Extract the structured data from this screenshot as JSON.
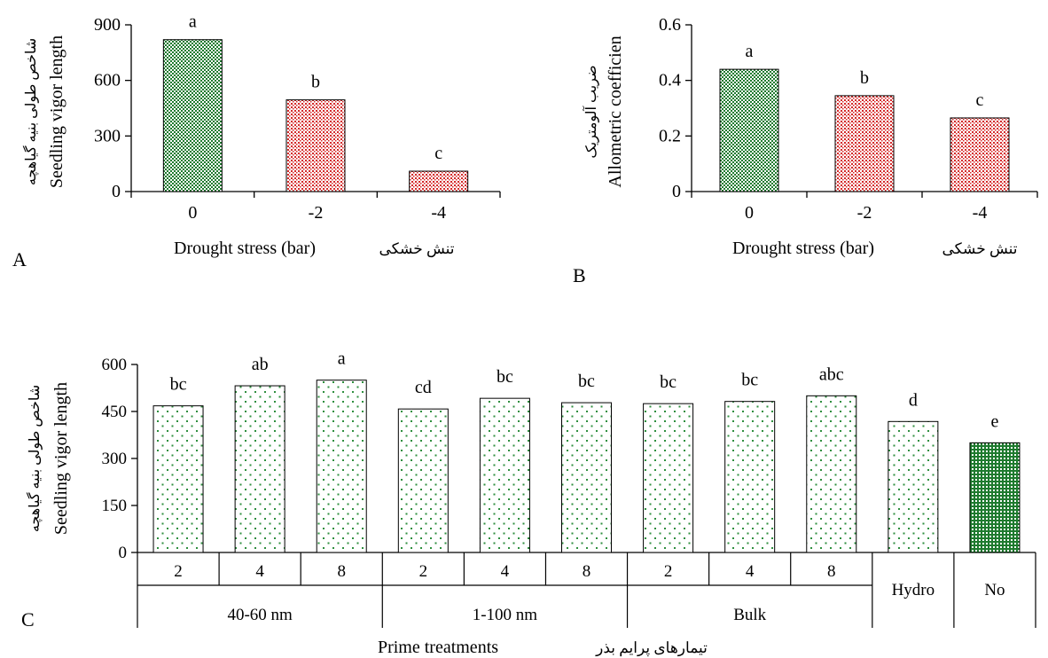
{
  "colors": {
    "green_fill": "#1e7a2e",
    "red_fill": "#d42a2a",
    "light_green_fill": "#3a9a4a",
    "axis": "#000000"
  },
  "chart_data": [
    {
      "id": "A",
      "type": "bar",
      "panel_label": "A",
      "categories": [
        "0",
        "-2",
        "-4"
      ],
      "values": [
        820,
        495,
        110
      ],
      "letters": [
        "a",
        "b",
        "c"
      ],
      "bar_styles": [
        "green",
        "red",
        "red"
      ],
      "ylabel": "Seedling vigor length",
      "ylabel_persian": "شاخص طولی بنیه گیاهچه",
      "xlabel": "Drought stress (bar)",
      "xlabel_persian": "تنش خشکی",
      "yticks": [
        "0",
        "300",
        "600",
        "900"
      ],
      "ylim": [
        0,
        900
      ]
    },
    {
      "id": "B",
      "type": "bar",
      "panel_label": "B",
      "categories": [
        "0",
        "-2",
        "-4"
      ],
      "values": [
        0.44,
        0.345,
        0.265
      ],
      "letters": [
        "a",
        "b",
        "c"
      ],
      "bar_styles": [
        "green",
        "red",
        "red"
      ],
      "ylabel": "Allometric coefficien",
      "ylabel_persian": "ضریب آلومتریک",
      "xlabel": "Drought stress (bar)",
      "xlabel_persian": "تنش خشکی",
      "yticks": [
        "0",
        "0.2",
        "0.4",
        "0.6"
      ],
      "ylim": [
        0,
        0.6
      ]
    },
    {
      "id": "C",
      "type": "bar",
      "panel_label": "C",
      "categories": [
        "2",
        "4",
        "8",
        "2",
        "4",
        "8",
        "2",
        "4",
        "8",
        "",
        ""
      ],
      "values": [
        468,
        532,
        550,
        458,
        492,
        478,
        475,
        482,
        500,
        418,
        350
      ],
      "letters": [
        "bc",
        "ab",
        "a",
        "cd",
        "bc",
        "bc",
        "bc",
        "bc",
        "abc",
        "d",
        "e"
      ],
      "bar_styles": [
        "light",
        "light",
        "light",
        "light",
        "light",
        "light",
        "light",
        "light",
        "light",
        "light",
        "dense"
      ],
      "groups": [
        {
          "label": "40-60 nm",
          "start": 0,
          "end": 2
        },
        {
          "label": "1-100 nm",
          "start": 3,
          "end": 5
        },
        {
          "label": "Bulk",
          "start": 6,
          "end": 8
        },
        {
          "label": "Hydro",
          "start": 9,
          "end": 9
        },
        {
          "label": "No",
          "start": 10,
          "end": 10
        }
      ],
      "ylabel": "Seedling vigor length",
      "ylabel_persian": "شاخص طولی بنیه گیاهچه",
      "xlabel": "Prime treatments",
      "xlabel_persian": "تیمارهای پرایم بذر",
      "yticks": [
        "0",
        "150",
        "300",
        "450",
        "600"
      ],
      "ylim": [
        0,
        600
      ]
    }
  ]
}
